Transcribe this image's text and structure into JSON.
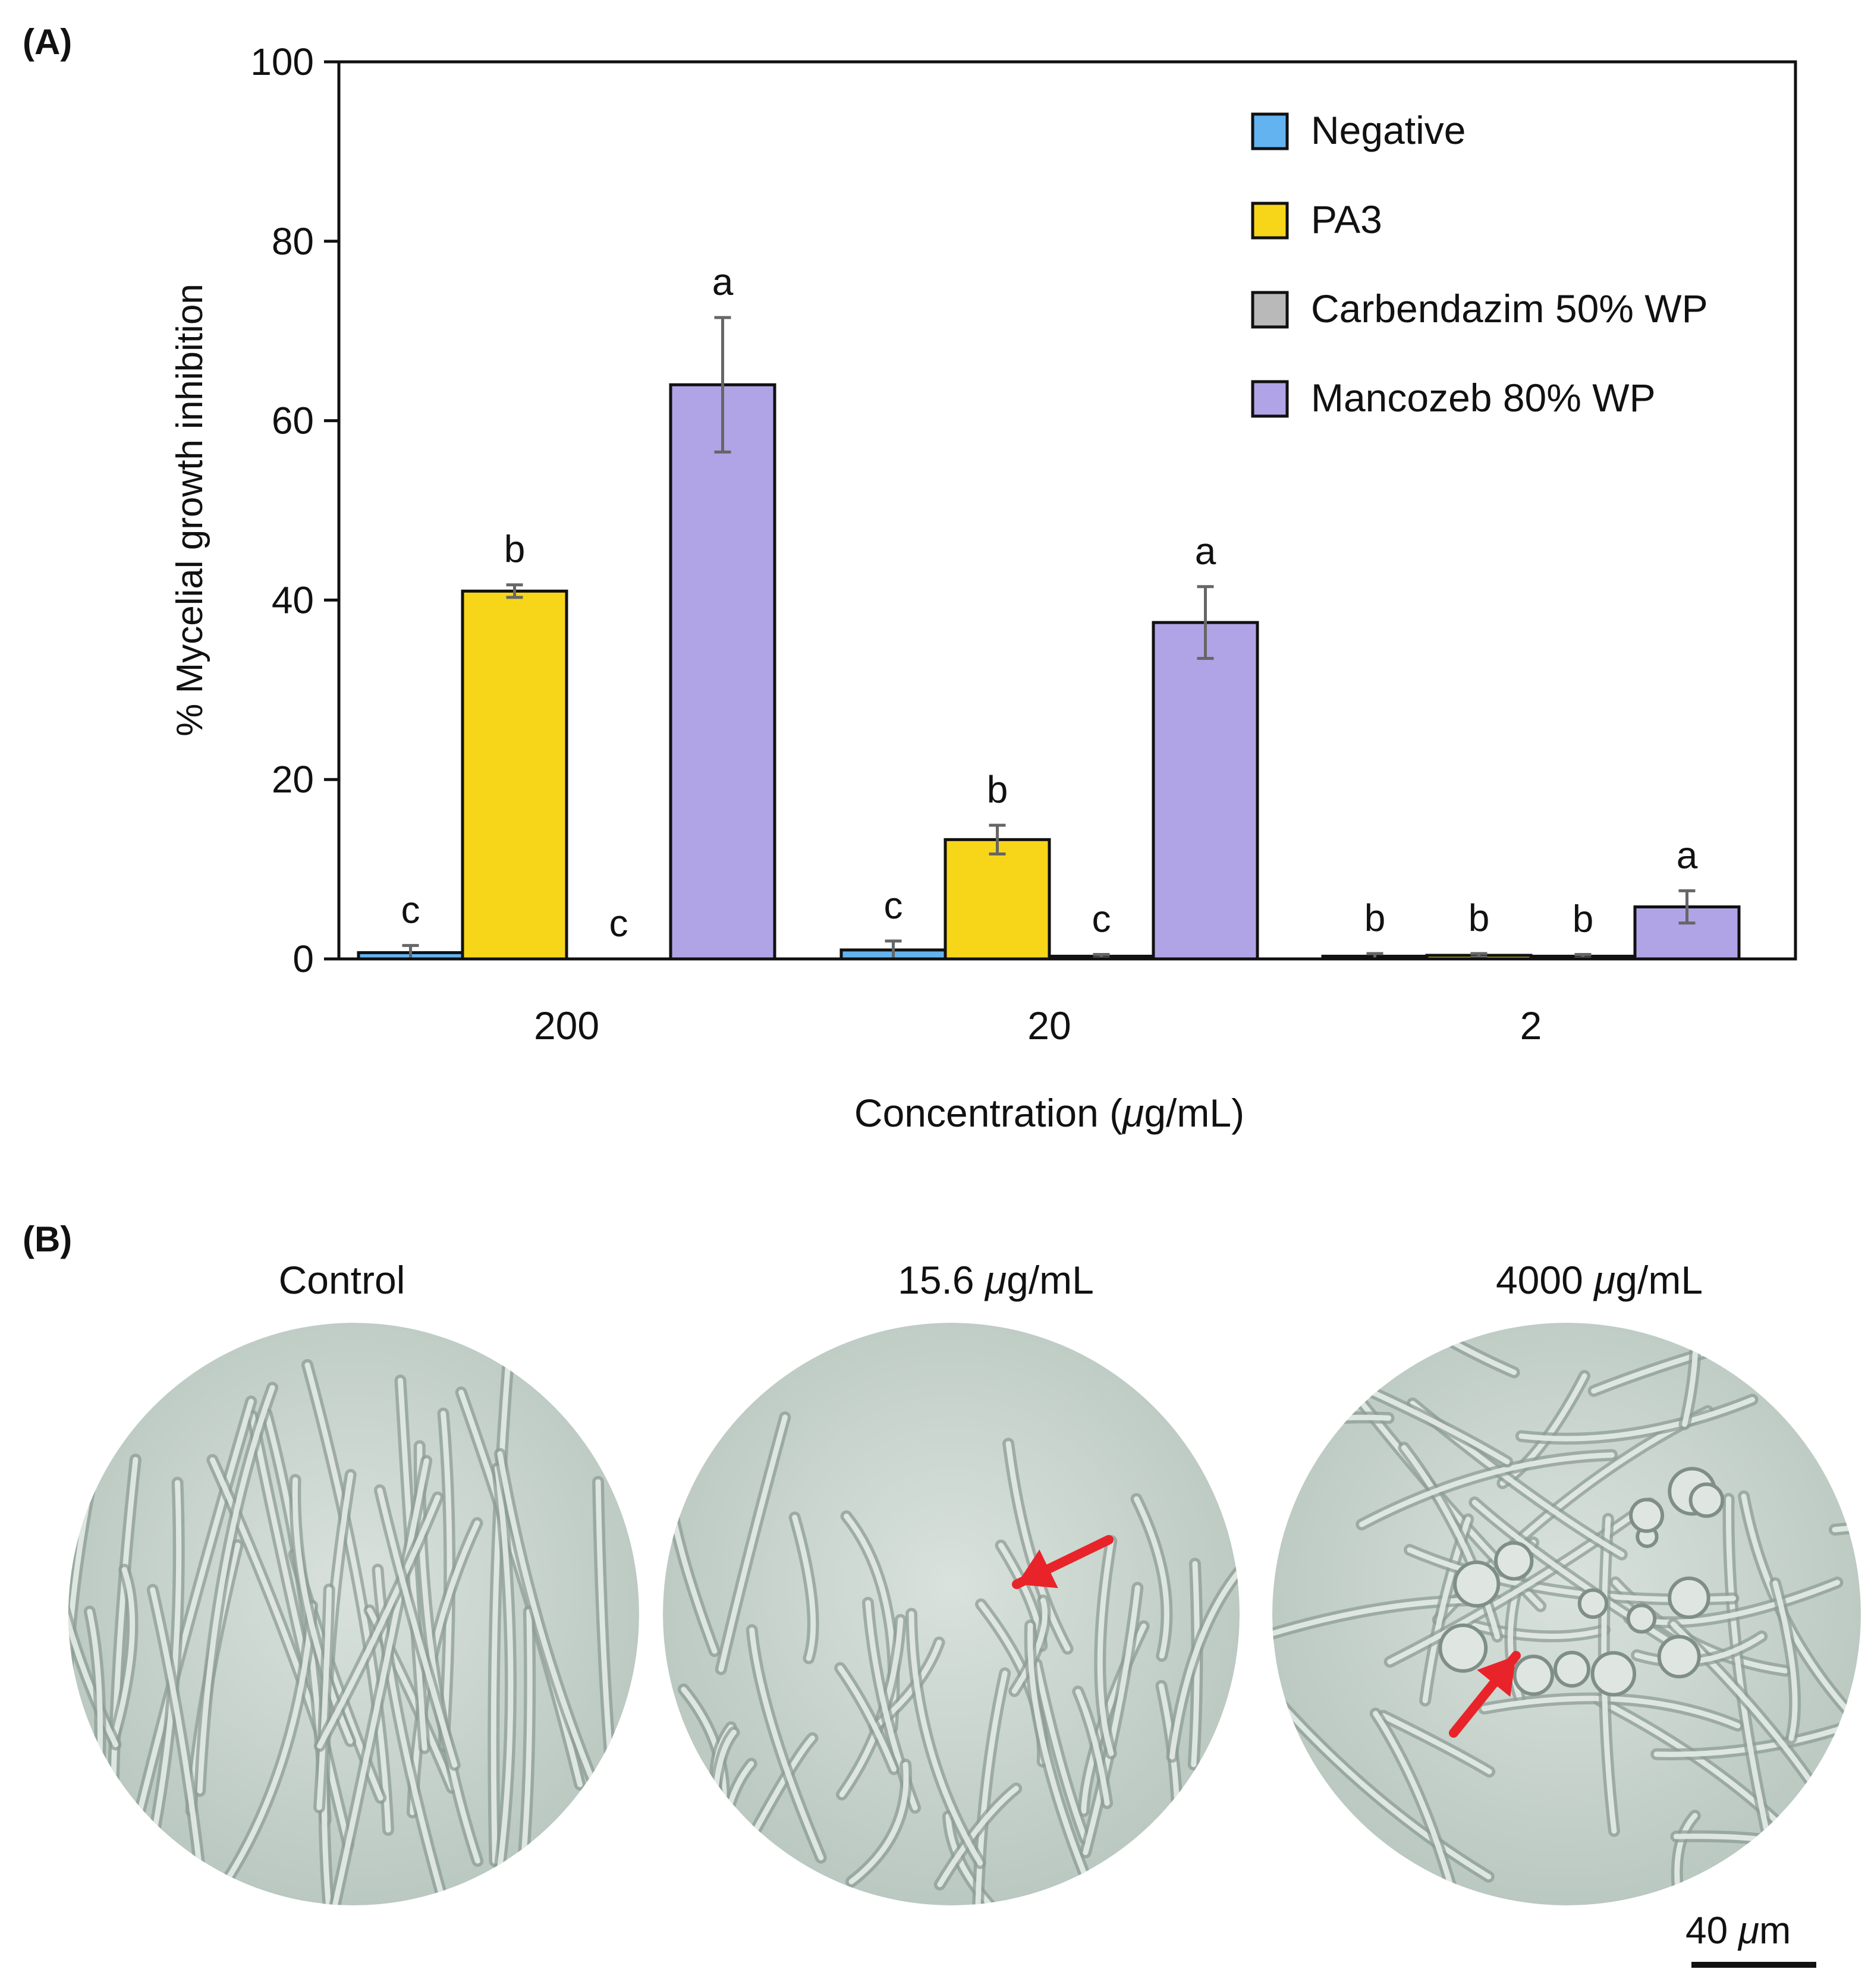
{
  "panels": {
    "a_label": "(A)",
    "b_label": "(B)"
  },
  "chart_data": {
    "type": "bar",
    "title": "",
    "xlabel_prefix": "Concentration (",
    "xlabel_unit_italic": "μ",
    "xlabel_suffix": "g/mL)",
    "ylabel": "% Mycelial growth inhibition",
    "ylim": [
      0,
      100
    ],
    "yticks": [
      0,
      20,
      40,
      60,
      80,
      100
    ],
    "categories": [
      "200",
      "20",
      "2"
    ],
    "legend_position": "top-right",
    "series": [
      {
        "name": "Negative",
        "color": "#63b3f0",
        "values": [
          0.7,
          1.0,
          0.3
        ],
        "errors": [
          0.8,
          1.0,
          0.3
        ],
        "letters": [
          "c",
          "c",
          "b"
        ]
      },
      {
        "name": "PA3",
        "color": "#f7d61a",
        "values": [
          41,
          13.3,
          0.4
        ],
        "errors": [
          0.7,
          1.6,
          0.2
        ],
        "letters": [
          "b",
          "b",
          "b"
        ]
      },
      {
        "name": "Carbendazim 50% WP",
        "color": "#b9b9b9",
        "values": [
          0,
          0.3,
          0.3
        ],
        "errors": [
          0,
          0.2,
          0.2
        ],
        "letters": [
          "c",
          "c",
          "b"
        ]
      },
      {
        "name": "Mancozeb 80% WP",
        "color": "#b1a4e6",
        "values": [
          64,
          37.5,
          5.8
        ],
        "errors": [
          7.5,
          4,
          1.8
        ],
        "letters": [
          "a",
          "a",
          "a"
        ]
      }
    ]
  },
  "micrographs": {
    "images": [
      {
        "title": "Control"
      },
      {
        "title_prefix": "15.6 ",
        "title_unit": "μ",
        "title_suffix": "g/mL"
      },
      {
        "title_prefix": "4000 ",
        "title_unit": "μ",
        "title_suffix": "g/mL"
      }
    ],
    "scale_prefix": "40 ",
    "scale_unit": "μ",
    "scale_suffix": "m"
  }
}
